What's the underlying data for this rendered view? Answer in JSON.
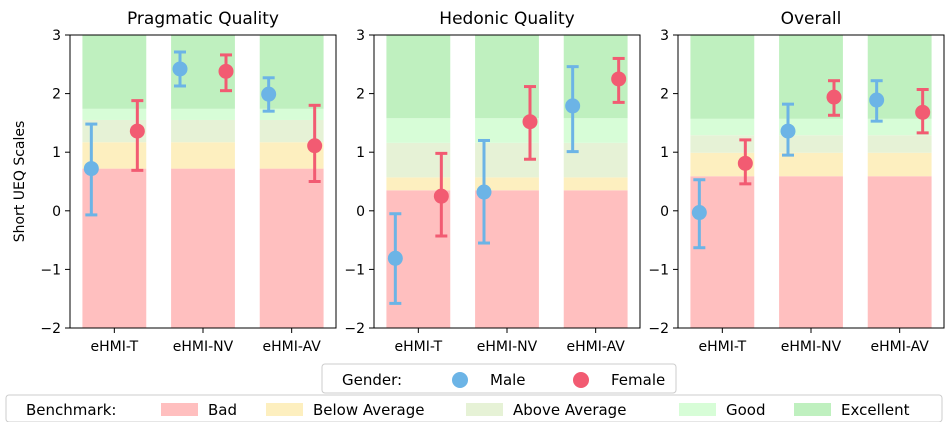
{
  "chart_data": [
    {
      "type": "scatter",
      "title": "Pragmatic Quality",
      "ylabel": "Short UEQ Scales",
      "ylim": [
        -2,
        3
      ],
      "yticks": [
        "−2",
        "−1",
        "0",
        "1",
        "2",
        "3"
      ],
      "categories": [
        "eHMI-T",
        "eHMI-NV",
        "eHMI-AV"
      ],
      "benchmark": [
        0.72,
        1.17,
        1.55,
        1.74
      ],
      "series": [
        {
          "name": "Male",
          "values": [
            0.72,
            2.42,
            1.99
          ],
          "err_low": [
            -0.07,
            2.13,
            1.7
          ],
          "err_high": [
            1.48,
            2.71,
            2.27
          ]
        },
        {
          "name": "Female",
          "values": [
            1.36,
            2.38,
            1.11
          ],
          "err_low": [
            0.69,
            2.05,
            0.5
          ],
          "err_high": [
            1.88,
            2.66,
            1.8
          ]
        }
      ]
    },
    {
      "type": "scatter",
      "title": "Hedonic Quality",
      "ylabel": "",
      "ylim": [
        -2,
        3
      ],
      "yticks": [
        "−2",
        "−1",
        "0",
        "1",
        "2",
        "3"
      ],
      "categories": [
        "eHMI-T",
        "eHMI-NV",
        "eHMI-AV"
      ],
      "benchmark": [
        0.35,
        0.57,
        1.16,
        1.58
      ],
      "series": [
        {
          "name": "Male",
          "values": [
            -0.81,
            0.32,
            1.79
          ],
          "err_low": [
            -1.58,
            -0.55,
            1.01
          ],
          "err_high": [
            -0.05,
            1.2,
            2.46
          ]
        },
        {
          "name": "Female",
          "values": [
            0.25,
            1.52,
            2.25
          ],
          "err_low": [
            -0.43,
            0.88,
            1.85
          ],
          "err_high": [
            0.98,
            2.12,
            2.6
          ]
        }
      ]
    },
    {
      "type": "scatter",
      "title": "Overall",
      "ylabel": "",
      "ylim": [
        -2,
        3
      ],
      "yticks": [
        "−2",
        "−1",
        "0",
        "1",
        "2",
        "3"
      ],
      "categories": [
        "eHMI-T",
        "eHMI-NV",
        "eHMI-AV"
      ],
      "benchmark": [
        0.59,
        0.99,
        1.29,
        1.57
      ],
      "series": [
        {
          "name": "Male",
          "values": [
            -0.03,
            1.36,
            1.89
          ],
          "err_low": [
            -0.63,
            0.95,
            1.53
          ],
          "err_high": [
            0.53,
            1.82,
            2.22
          ]
        },
        {
          "name": "Female",
          "values": [
            0.81,
            1.94,
            1.68
          ],
          "err_low": [
            0.46,
            1.63,
            1.33
          ],
          "err_high": [
            1.21,
            2.22,
            2.07
          ]
        }
      ]
    }
  ],
  "legend_gender": {
    "title": "Gender:",
    "items": [
      {
        "label": "Male",
        "color": "#6cb4e6"
      },
      {
        "label": "Female",
        "color": "#f25b72"
      }
    ]
  },
  "legend_benchmark": {
    "title": "Benchmark:",
    "items": [
      {
        "label": "Bad",
        "color": "#ffbfbf"
      },
      {
        "label": "Below Average",
        "color": "#fdefbf"
      },
      {
        "label": "Above Average",
        "color": "#e6f2d6"
      },
      {
        "label": "Good",
        "color": "#d7fdd7"
      },
      {
        "label": "Excellent",
        "color": "#bff0bf"
      }
    ]
  }
}
